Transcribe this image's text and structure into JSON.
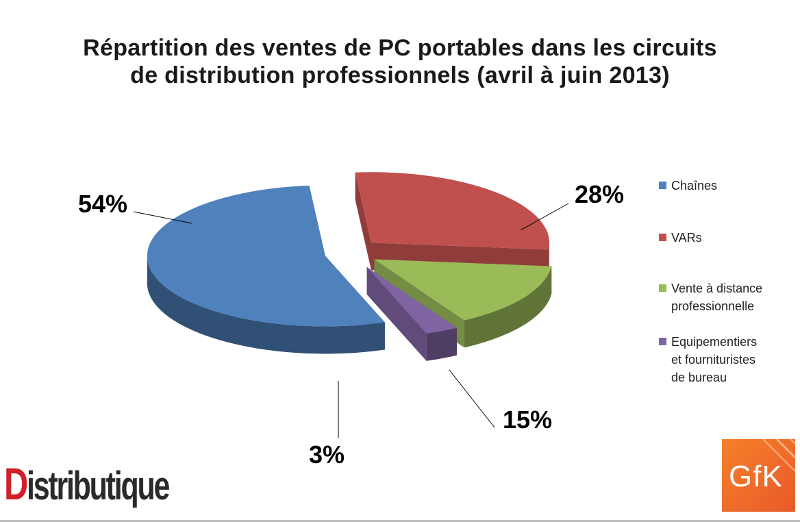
{
  "chart_data": {
    "type": "pie",
    "title": "Répartition des ventes de PC portables dans les circuits de distribution professionnels (avril à juin 2013)",
    "title_lines": [
      "Répartition des ventes de PC portables dans les circuits",
      "de distribution professionnels (avril à juin 2013)"
    ],
    "legend_position": "right",
    "slices": [
      {
        "name": "Chaînes",
        "value": 54,
        "label": "54%",
        "color": "#4f81bd"
      },
      {
        "name": "VARs",
        "value": 28,
        "label": "28%",
        "color": "#c0504d"
      },
      {
        "name": "Vente à distance professionnelle",
        "value": 15,
        "label": "15%",
        "color": "#9bbb59"
      },
      {
        "name": "Equipementiers et fournituristes de bureau",
        "value": 3,
        "label": "3%",
        "color": "#8064a2"
      }
    ]
  },
  "legend": [
    {
      "lines": [
        "Chaînes"
      ]
    },
    {
      "lines": [
        "VARs"
      ]
    },
    {
      "lines": [
        "Vente à distance",
        "professionnelle"
      ]
    },
    {
      "lines": [
        "Equipementiers",
        "et fournituristes",
        "de bureau"
      ]
    }
  ],
  "logos": {
    "distributique": {
      "first": "D",
      "rest": "istributique"
    },
    "gfk": "GfK"
  }
}
